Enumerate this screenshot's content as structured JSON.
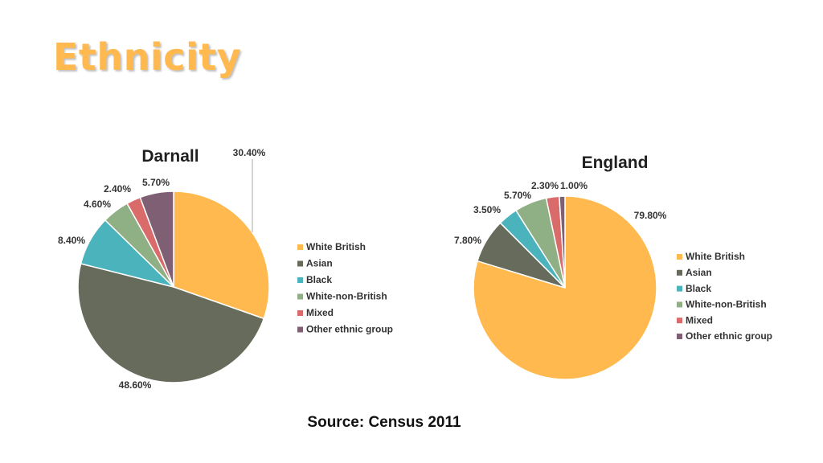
{
  "slide": {
    "title": "Ethnicity",
    "source": "Source: Census 2011"
  },
  "colors": {
    "title": "#FFB94F",
    "series": [
      "#FFB94F",
      "#666B5B",
      "#4BB3BC",
      "#8FAF85",
      "#D96B6B",
      "#7F5F74"
    ]
  },
  "chart_data": [
    {
      "type": "pie",
      "title": "Darnall",
      "categories": [
        "White British",
        "Asian",
        "Black",
        "White-non-British",
        "Mixed",
        "Other ethnic group"
      ],
      "values": [
        30.4,
        48.6,
        8.4,
        4.6,
        2.4,
        5.7
      ],
      "labels": [
        "30.40%",
        "48.60%",
        "8.40%",
        "4.60%",
        "2.40%",
        "5.70%"
      ],
      "legend_position": "right"
    },
    {
      "type": "pie",
      "title": "England",
      "categories": [
        "White British",
        "Asian",
        "Black",
        "White-non-British",
        "Mixed",
        "Other ethnic group"
      ],
      "values": [
        79.8,
        7.8,
        3.5,
        5.7,
        2.3,
        1.0
      ],
      "labels": [
        "79.80%",
        "7.80%",
        "3.50%",
        "5.70%",
        "2.30%",
        "1.00%"
      ],
      "legend_position": "right"
    }
  ]
}
